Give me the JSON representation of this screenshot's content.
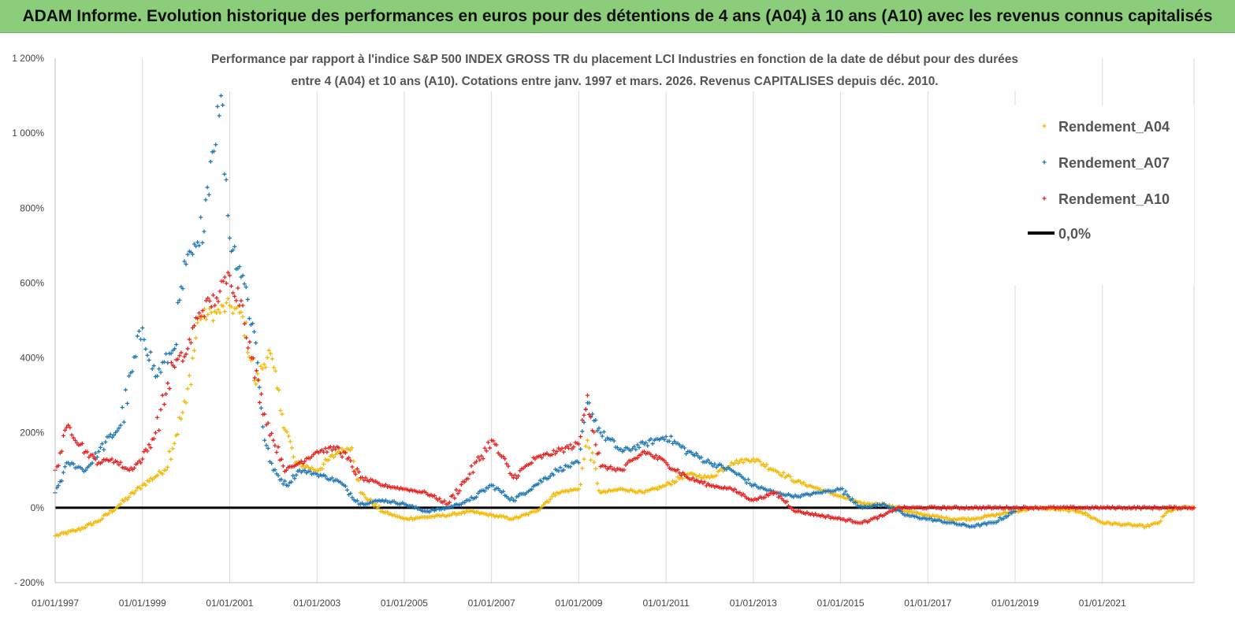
{
  "banner": {
    "text": "ADAM Informe. Evolution historique des performances en euros pour des détentions de 4 ans (A04) à 10 ans (A10) avec les revenus connus capitalisés"
  },
  "chart_data": {
    "type": "scatter",
    "title_lines": [
      "Performance par rapport à l'indice S&P 500 INDEX GROSS TR  du placement LCI Industries en fonction de la date de début pour des durées",
      "entre 4 (A04) et 10 ans (A10). Cotations entre janv. 1997 et mars. 2026. Revenus CAPITALISES depuis déc. 2010."
    ],
    "y_ticks": [
      "- 200%",
      "0%",
      "200%",
      "400%",
      "600%",
      "800%",
      "1 000%",
      "1 200%"
    ],
    "y_tick_values": [
      -200,
      0,
      200,
      400,
      600,
      800,
      1000,
      1200
    ],
    "ylim": [
      -200,
      1200
    ],
    "x_ticks": [
      "01/01/1997",
      "01/01/1999",
      "01/01/2001",
      "01/01/2003",
      "01/01/2005",
      "01/01/2007",
      "01/01/2009",
      "01/01/2011",
      "01/01/2013",
      "01/01/2015",
      "01/01/2017",
      "01/01/2019",
      "01/01/2021"
    ],
    "x_tick_values": [
      1997,
      1999,
      2001,
      2003,
      2005,
      2007,
      2009,
      2011,
      2013,
      2015,
      2017,
      2019,
      2021
    ],
    "xlim": [
      1997,
      2023.1
    ],
    "grid": "vertical",
    "legend_position": "top-right",
    "marker": "+",
    "series": [
      {
        "name": "Rendement_A04",
        "color": "#f5b800",
        "x": [
          1997.0,
          1997.5,
          1998.0,
          1998.5,
          1999.0,
          1999.5,
          2000.0,
          2000.3,
          2000.7,
          2001.0,
          2001.3,
          2001.6,
          2001.9,
          2002.2,
          2002.5,
          2003.0,
          2003.5,
          2003.8,
          2004.0,
          2004.5,
          2005.0,
          2005.5,
          2006.0,
          2006.5,
          2007.0,
          2007.5,
          2008.0,
          2008.5,
          2009.0,
          2009.2,
          2009.5,
          2010.0,
          2010.5,
          2011.0,
          2011.5,
          2012.0,
          2012.5,
          2013.0,
          2013.5,
          2014.0,
          2014.5,
          2015.0,
          2015.5,
          2016.0,
          2016.5,
          2017.0,
          2017.5,
          2018.0,
          2018.5,
          2019.0,
          2019.5,
          2020.0,
          2020.5,
          2021.0,
          2021.5,
          2022.0,
          2022.3,
          2022.5,
          2022.8,
          2023.1
        ],
        "y": [
          -75,
          -60,
          -35,
          10,
          60,
          100,
          280,
          510,
          520,
          540,
          510,
          330,
          420,
          250,
          120,
          100,
          150,
          160,
          40,
          -10,
          -30,
          -25,
          -20,
          -10,
          -20,
          -30,
          -10,
          40,
          50,
          180,
          40,
          50,
          40,
          60,
          90,
          80,
          120,
          130,
          100,
          70,
          50,
          30,
          10,
          10,
          -10,
          -20,
          -30,
          -30,
          -20,
          -10,
          0,
          -5,
          -10,
          -40,
          -45,
          -50,
          -40,
          -10,
          0,
          0
        ]
      },
      {
        "name": "Rendement_A07",
        "color": "#1f77b4",
        "x": [
          1997.0,
          1997.3,
          1997.7,
          1998.0,
          1998.5,
          1999.0,
          1999.3,
          1999.7,
          2000.0,
          2000.3,
          2000.6,
          2000.8,
          2001.0,
          2001.3,
          2001.6,
          2001.8,
          2002.0,
          2002.3,
          2002.6,
          2003.0,
          2003.5,
          2004.0,
          2004.5,
          2005.0,
          2005.5,
          2006.0,
          2006.5,
          2007.0,
          2007.5,
          2008.0,
          2008.5,
          2009.0,
          2009.2,
          2009.5,
          2010.0,
          2010.5,
          2011.0,
          2011.5,
          2012.0,
          2012.5,
          2013.0,
          2013.5,
          2014.0,
          2014.5,
          2015.0,
          2015.5,
          2016.0,
          2016.5,
          2017.0,
          2017.5,
          2018.0,
          2018.5,
          2019.0
        ],
        "y": [
          40,
          120,
          100,
          150,
          220,
          480,
          350,
          420,
          650,
          700,
          950,
          1100,
          720,
          620,
          440,
          180,
          100,
          60,
          100,
          90,
          70,
          10,
          20,
          10,
          -10,
          0,
          20,
          60,
          20,
          60,
          100,
          120,
          280,
          200,
          150,
          170,
          190,
          150,
          120,
          100,
          60,
          40,
          30,
          40,
          50,
          0,
          10,
          -20,
          -30,
          -40,
          -50,
          -40,
          -10
        ]
      },
      {
        "name": "Rendement_A10",
        "color": "#e8201e",
        "x": [
          1997.0,
          1997.3,
          1997.7,
          1998.0,
          1998.3,
          1998.7,
          1999.0,
          1999.3,
          1999.7,
          2000.0,
          2000.3,
          2000.7,
          2001.0,
          2001.3,
          2001.5,
          2001.8,
          2002.0,
          2002.3,
          2002.6,
          2003.0,
          2003.5,
          2004.0,
          2004.5,
          2005.0,
          2005.5,
          2006.0,
          2006.5,
          2007.0,
          2007.5,
          2008.0,
          2008.5,
          2009.0,
          2009.2,
          2009.5,
          2010.0,
          2010.5,
          2011.0,
          2011.5,
          2012.0,
          2012.5,
          2013.0,
          2013.5,
          2014.0,
          2014.5,
          2015.0,
          2015.5,
          2016.0,
          2016.3,
          2016.7,
          2017.0,
          2017.5,
          2018.0,
          2018.5,
          2019.0,
          2019.5,
          2020.0,
          2020.5,
          2021.0,
          2021.5,
          2022.0,
          2022.5,
          2023.1
        ],
        "y": [
          100,
          220,
          150,
          120,
          130,
          100,
          130,
          200,
          380,
          410,
          520,
          560,
          620,
          540,
          400,
          250,
          180,
          100,
          120,
          150,
          160,
          80,
          60,
          50,
          40,
          10,
          90,
          180,
          80,
          130,
          150,
          170,
          300,
          110,
          100,
          150,
          120,
          80,
          60,
          50,
          20,
          40,
          -10,
          -20,
          -30,
          -40,
          -20,
          0,
          0,
          0,
          0,
          0,
          0,
          0,
          0,
          0,
          0,
          0,
          0,
          0,
          0,
          0
        ]
      }
    ],
    "reference_line": {
      "name": "0,0%",
      "y": 0,
      "color": "#000000"
    }
  }
}
